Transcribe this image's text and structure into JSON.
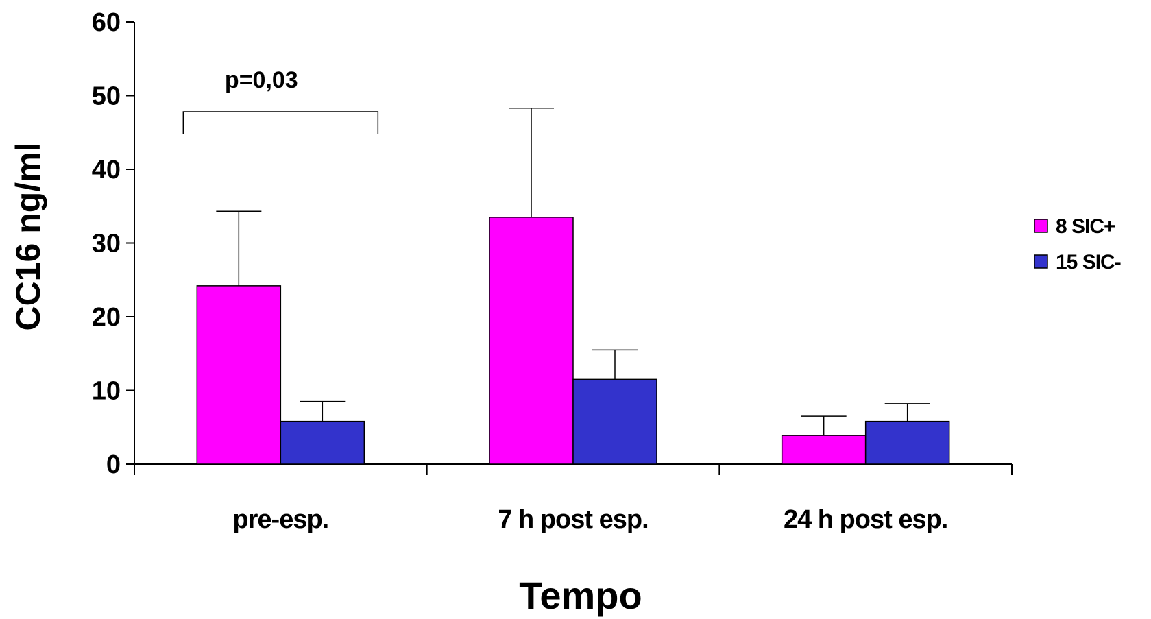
{
  "chart_data": {
    "type": "bar",
    "title": "",
    "xlabel": "Tempo",
    "ylabel": "CC16 ng/ml",
    "ylim": [
      0,
      60
    ],
    "yticks": [
      0,
      10,
      20,
      30,
      40,
      50,
      60
    ],
    "categories": [
      "pre-esp.",
      "7 h post esp.",
      "24 h post esp."
    ],
    "series": [
      {
        "name": "8 SIC+",
        "color": "#FF00FF",
        "values": [
          24.2,
          33.5,
          3.9
        ],
        "error_plus": [
          10.1,
          14.8,
          2.6
        ]
      },
      {
        "name": "15 SIC-",
        "color": "#3333CC",
        "values": [
          5.8,
          11.5,
          5.8
        ],
        "error_plus": [
          2.7,
          4.0,
          2.4
        ]
      }
    ],
    "legend_position": "right",
    "grid": false,
    "annotations": [
      {
        "text": "p=0,03",
        "category": "pre-esp."
      }
    ]
  }
}
